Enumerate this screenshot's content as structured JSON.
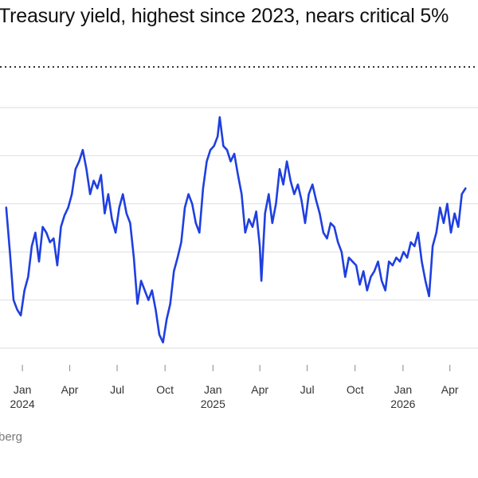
{
  "title": "Treasury yield, highest since 2023, nears critical 5%",
  "source": "berg",
  "chart_data": {
    "type": "line",
    "title": "Treasury yield, highest since 2023, nears critical 5%",
    "xlabel": "",
    "ylabel": "",
    "grid": true,
    "x_ticks": [
      {
        "date": "2024-01-01",
        "label": "Jan",
        "year": "2024"
      },
      {
        "date": "2024-04-01",
        "label": "Apr",
        "year": ""
      },
      {
        "date": "2024-07-01",
        "label": "Jul",
        "year": ""
      },
      {
        "date": "2024-10-01",
        "label": "Oct",
        "year": ""
      },
      {
        "date": "2025-01-01",
        "label": "Jan",
        "year": "2025"
      },
      {
        "date": "2025-04-01",
        "label": "Apr",
        "year": ""
      },
      {
        "date": "2025-07-01",
        "label": "Jul",
        "year": ""
      },
      {
        "date": "2025-10-01",
        "label": "Oct",
        "year": ""
      },
      {
        "date": "2026-01-01",
        "label": "Jan",
        "year": "2026"
      },
      {
        "date": "2026-04-01",
        "label": "Apr",
        "year": ""
      }
    ],
    "ylim": [
      3.7,
      5.05
    ],
    "gridlines": [
      3.75,
      4.0,
      4.25,
      4.5,
      4.75,
      5.0
    ],
    "series": [
      {
        "color": "#1f3fe0",
        "points": [
          [
            "2023-12-01",
            4.48
          ],
          [
            "2023-12-08",
            4.25
          ],
          [
            "2023-12-15",
            4.0
          ],
          [
            "2023-12-22",
            3.95
          ],
          [
            "2023-12-29",
            3.92
          ],
          [
            "2024-01-05",
            4.05
          ],
          [
            "2024-01-12",
            4.12
          ],
          [
            "2024-01-19",
            4.28
          ],
          [
            "2024-01-26",
            4.35
          ],
          [
            "2024-02-02",
            4.2
          ],
          [
            "2024-02-09",
            4.38
          ],
          [
            "2024-02-16",
            4.35
          ],
          [
            "2024-02-23",
            4.3
          ],
          [
            "2024-03-01",
            4.32
          ],
          [
            "2024-03-08",
            4.18
          ],
          [
            "2024-03-15",
            4.38
          ],
          [
            "2024-03-22",
            4.44
          ],
          [
            "2024-03-29",
            4.48
          ],
          [
            "2024-04-05",
            4.55
          ],
          [
            "2024-04-12",
            4.68
          ],
          [
            "2024-04-19",
            4.72
          ],
          [
            "2024-04-26",
            4.78
          ],
          [
            "2024-05-03",
            4.68
          ],
          [
            "2024-05-10",
            4.55
          ],
          [
            "2024-05-17",
            4.62
          ],
          [
            "2024-05-24",
            4.58
          ],
          [
            "2024-05-31",
            4.65
          ],
          [
            "2024-06-07",
            4.45
          ],
          [
            "2024-06-14",
            4.55
          ],
          [
            "2024-06-21",
            4.42
          ],
          [
            "2024-06-28",
            4.35
          ],
          [
            "2024-07-05",
            4.48
          ],
          [
            "2024-07-12",
            4.55
          ],
          [
            "2024-07-19",
            4.45
          ],
          [
            "2024-07-26",
            4.4
          ],
          [
            "2024-08-02",
            4.22
          ],
          [
            "2024-08-09",
            3.98
          ],
          [
            "2024-08-16",
            4.1
          ],
          [
            "2024-08-23",
            4.05
          ],
          [
            "2024-08-30",
            4.0
          ],
          [
            "2024-09-06",
            4.05
          ],
          [
            "2024-09-13",
            3.95
          ],
          [
            "2024-09-20",
            3.82
          ],
          [
            "2024-09-27",
            3.78
          ],
          [
            "2024-10-04",
            3.9
          ],
          [
            "2024-10-11",
            3.98
          ],
          [
            "2024-10-18",
            4.15
          ],
          [
            "2024-10-25",
            4.22
          ],
          [
            "2024-11-01",
            4.3
          ],
          [
            "2024-11-08",
            4.48
          ],
          [
            "2024-11-15",
            4.55
          ],
          [
            "2024-11-22",
            4.5
          ],
          [
            "2024-11-29",
            4.4
          ],
          [
            "2024-12-06",
            4.35
          ],
          [
            "2024-12-13",
            4.58
          ],
          [
            "2024-12-20",
            4.72
          ],
          [
            "2024-12-27",
            4.78
          ],
          [
            "2025-01-03",
            4.8
          ],
          [
            "2025-01-10",
            4.85
          ],
          [
            "2025-01-14",
            4.95
          ],
          [
            "2025-01-21",
            4.8
          ],
          [
            "2025-01-28",
            4.78
          ],
          [
            "2025-02-04",
            4.72
          ],
          [
            "2025-02-11",
            4.76
          ],
          [
            "2025-02-18",
            4.65
          ],
          [
            "2025-02-25",
            4.55
          ],
          [
            "2025-03-04",
            4.35
          ],
          [
            "2025-03-11",
            4.42
          ],
          [
            "2025-03-18",
            4.38
          ],
          [
            "2025-03-25",
            4.46
          ],
          [
            "2025-04-01",
            4.28
          ],
          [
            "2025-04-04",
            4.1
          ],
          [
            "2025-04-11",
            4.45
          ],
          [
            "2025-04-18",
            4.55
          ],
          [
            "2025-04-25",
            4.4
          ],
          [
            "2025-05-02",
            4.5
          ],
          [
            "2025-05-09",
            4.68
          ],
          [
            "2025-05-16",
            4.6
          ],
          [
            "2025-05-23",
            4.72
          ],
          [
            "2025-05-30",
            4.62
          ],
          [
            "2025-06-06",
            4.55
          ],
          [
            "2025-06-13",
            4.6
          ],
          [
            "2025-06-20",
            4.52
          ],
          [
            "2025-06-27",
            4.4
          ],
          [
            "2025-07-04",
            4.55
          ],
          [
            "2025-07-11",
            4.6
          ],
          [
            "2025-07-18",
            4.52
          ],
          [
            "2025-07-25",
            4.45
          ],
          [
            "2025-08-01",
            4.35
          ],
          [
            "2025-08-08",
            4.32
          ],
          [
            "2025-08-15",
            4.4
          ],
          [
            "2025-08-22",
            4.38
          ],
          [
            "2025-08-29",
            4.3
          ],
          [
            "2025-09-05",
            4.25
          ],
          [
            "2025-09-12",
            4.12
          ],
          [
            "2025-09-19",
            4.22
          ],
          [
            "2025-09-26",
            4.2
          ],
          [
            "2025-10-03",
            4.18
          ],
          [
            "2025-10-10",
            4.08
          ],
          [
            "2025-10-17",
            4.15
          ],
          [
            "2025-10-24",
            4.05
          ],
          [
            "2025-10-31",
            4.12
          ],
          [
            "2025-11-07",
            4.15
          ],
          [
            "2025-11-14",
            4.2
          ],
          [
            "2025-11-21",
            4.1
          ],
          [
            "2025-11-28",
            4.05
          ],
          [
            "2025-12-05",
            4.2
          ],
          [
            "2025-12-12",
            4.18
          ],
          [
            "2025-12-19",
            4.22
          ],
          [
            "2025-12-26",
            4.2
          ],
          [
            "2026-01-02",
            4.25
          ],
          [
            "2026-01-09",
            4.22
          ],
          [
            "2026-01-16",
            4.3
          ],
          [
            "2026-01-23",
            4.28
          ],
          [
            "2026-01-30",
            4.35
          ],
          [
            "2026-02-06",
            4.2
          ],
          [
            "2026-02-13",
            4.1
          ],
          [
            "2026-02-20",
            4.02
          ],
          [
            "2026-02-27",
            4.28
          ],
          [
            "2026-03-06",
            4.35
          ],
          [
            "2026-03-13",
            4.48
          ],
          [
            "2026-03-20",
            4.4
          ],
          [
            "2026-03-27",
            4.5
          ],
          [
            "2026-04-03",
            4.35
          ],
          [
            "2026-04-10",
            4.45
          ],
          [
            "2026-04-17",
            4.38
          ],
          [
            "2026-04-24",
            4.55
          ],
          [
            "2026-05-01",
            4.58
          ]
        ]
      }
    ]
  }
}
